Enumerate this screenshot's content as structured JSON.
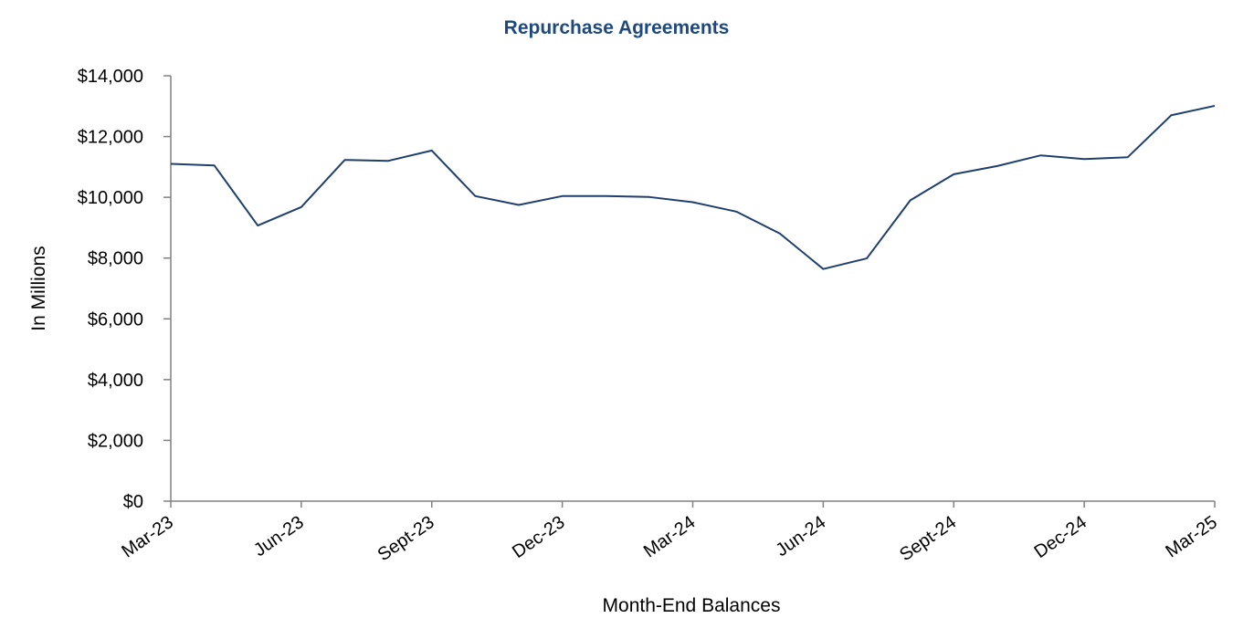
{
  "chart_data": {
    "type": "line",
    "title": "Repurchase Agreements",
    "xlabel": "Month-End Balances",
    "ylabel": "In Millions",
    "ylim": [
      0,
      14000
    ],
    "y_ticks": [
      0,
      2000,
      4000,
      6000,
      8000,
      10000,
      12000,
      14000
    ],
    "y_tick_labels": [
      "$0",
      "$2,000",
      "$4,000",
      "$6,000",
      "$8,000",
      "$10,000",
      "$12,000",
      "$14,000"
    ],
    "x_tick_labels": [
      "Mar-23",
      "Jun-23",
      "Sept-23",
      "Dec-23",
      "Mar-24",
      "Jun-24",
      "Sept-24",
      "Dec-24",
      "Mar-25"
    ],
    "x_tick_every": 3,
    "grid": false,
    "legend": "none",
    "colors": {
      "title": "#1f497d",
      "line": "#1f3f6e",
      "axis": "#808080"
    },
    "x": [
      "Mar-23",
      "Apr-23",
      "May-23",
      "Jun-23",
      "Jul-23",
      "Aug-23",
      "Sept-23",
      "Oct-23",
      "Nov-23",
      "Dec-23",
      "Jan-24",
      "Feb-24",
      "Mar-24",
      "Apr-24",
      "May-24",
      "Jun-24",
      "Jul-24",
      "Aug-24",
      "Sept-24",
      "Oct-24",
      "Nov-24",
      "Dec-24",
      "Jan-25",
      "Feb-25",
      "Mar-25"
    ],
    "values": [
      11100,
      11050,
      9070,
      9680,
      11230,
      11200,
      11540,
      10040,
      9750,
      10040,
      10040,
      10010,
      9840,
      9530,
      8810,
      7640,
      7990,
      9900,
      10760,
      11030,
      11380,
      11260,
      11320,
      12700,
      13010
    ]
  }
}
